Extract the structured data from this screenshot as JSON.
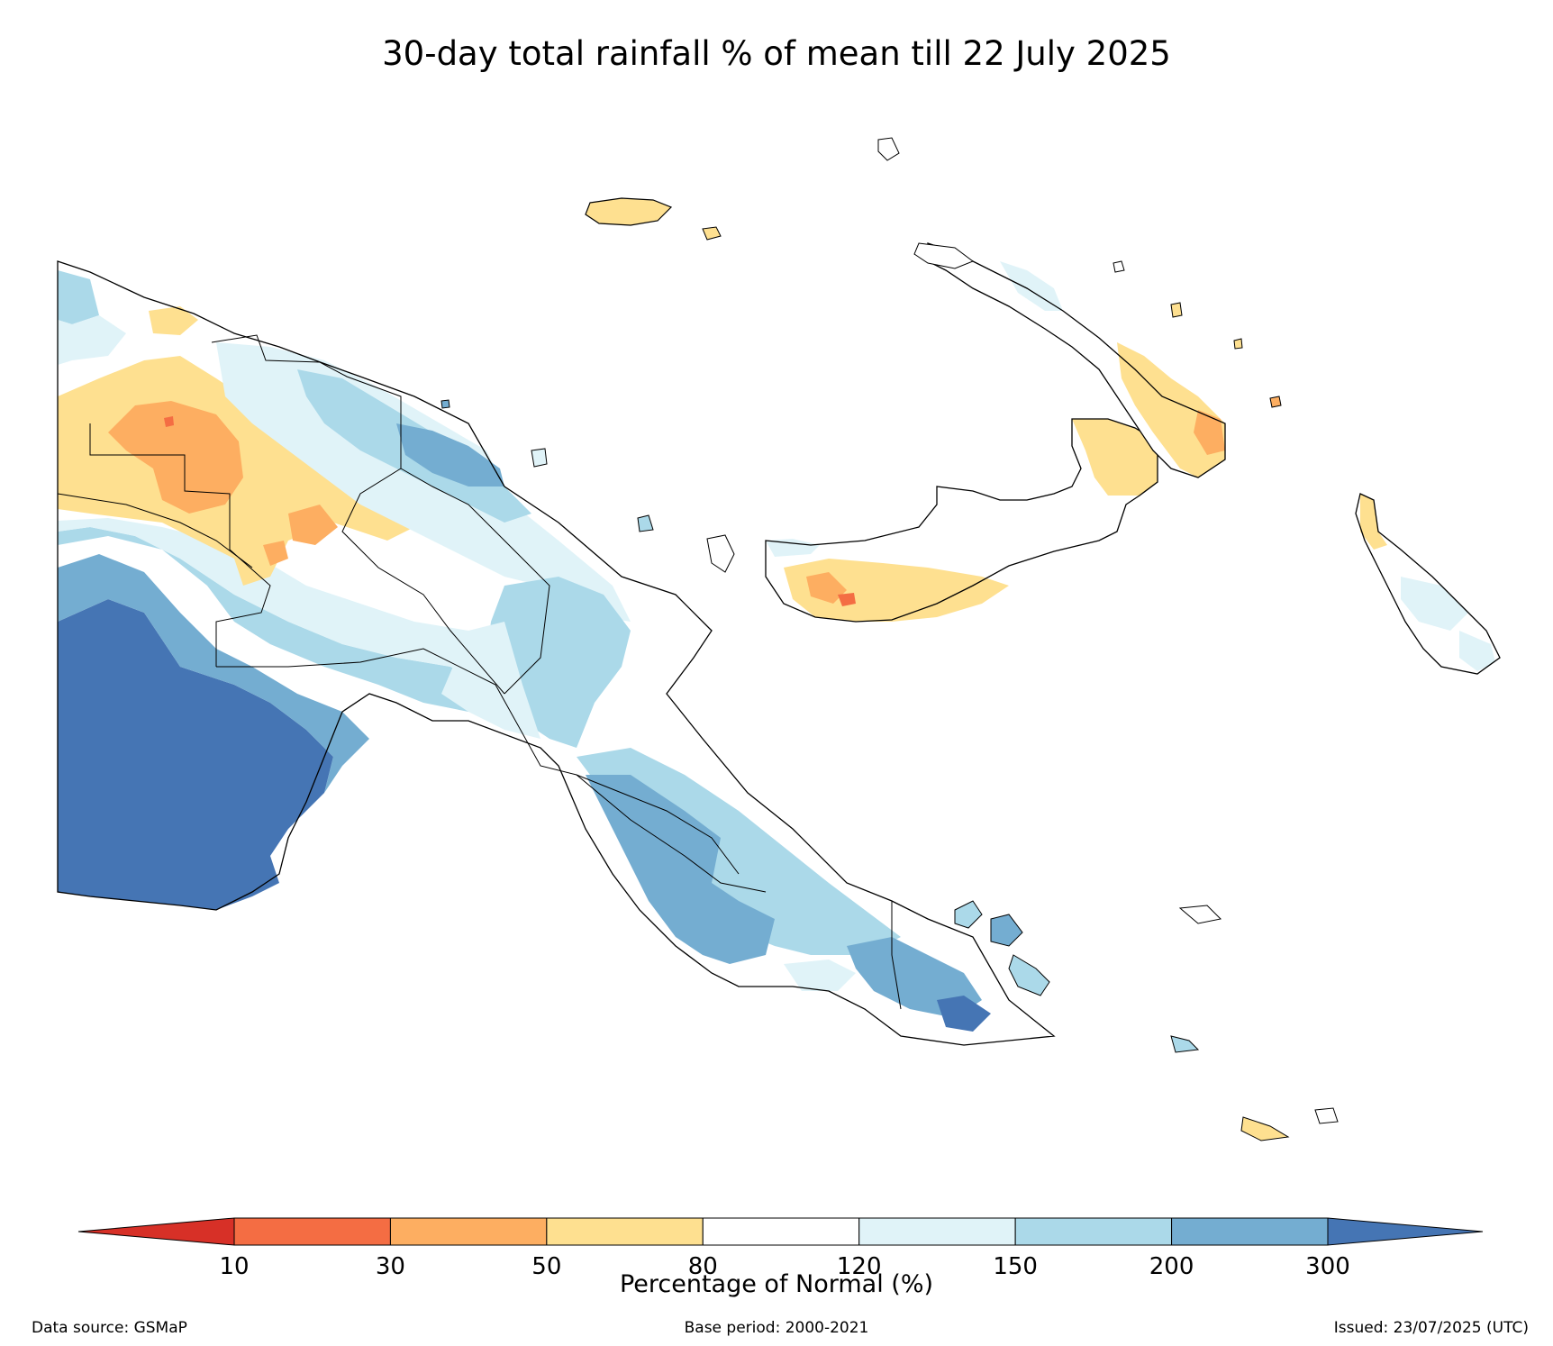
{
  "title": "30-day total rainfall % of mean till 22 July 2025",
  "colors": {
    "lt10": "#d73027",
    "c10_30": "#f46d43",
    "c30_50": "#fdae61",
    "c50_80": "#fee090",
    "c80_120": "#ffffff",
    "c120_150": "#e0f3f8",
    "c150_200": "#abd9e9",
    "c200_300": "#74add1",
    "gt300": "#4575b4"
  },
  "colorbar": {
    "label": "Percentage of Normal (%)",
    "ticks": [
      "10",
      "30",
      "50",
      "80",
      "120",
      "150",
      "200",
      "300"
    ],
    "colors": [
      "#d73027",
      "#f46d43",
      "#fdae61",
      "#fee090",
      "#ffffff",
      "#e0f3f8",
      "#abd9e9",
      "#74add1",
      "#4575b4"
    ]
  },
  "footer": {
    "source": "Data source: GSMaP",
    "base_period": "Base period: 2000-2021",
    "issued": "Issued: 23/07/2025 (UTC)"
  }
}
